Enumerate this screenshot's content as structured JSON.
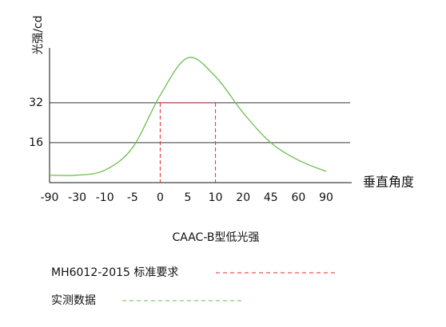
{
  "chart_data": {
    "type": "line",
    "title": "CAAC-B型低光强",
    "x_label": "垂直角度",
    "y_label": "光强/cd",
    "categories": [
      "-90",
      "-30",
      "-10",
      "-5",
      "0",
      "5",
      "10",
      "20",
      "45",
      "60",
      "90"
    ],
    "series": [
      {
        "name": "MH6012-2015 标准要求",
        "color": "#e8262a",
        "dash": true,
        "values": [
          null,
          null,
          null,
          null,
          32,
          32,
          32,
          null,
          null,
          null,
          null
        ]
      },
      {
        "name": "实测数据",
        "color": "#6bbf4e",
        "dash": false,
        "values": [
          3,
          3,
          5,
          14,
          35,
          50,
          42.5,
          28,
          16,
          9,
          4.5
        ]
      }
    ],
    "ylim": [
      0,
      54
    ],
    "yticks": [
      16,
      32
    ],
    "grid": true
  }
}
